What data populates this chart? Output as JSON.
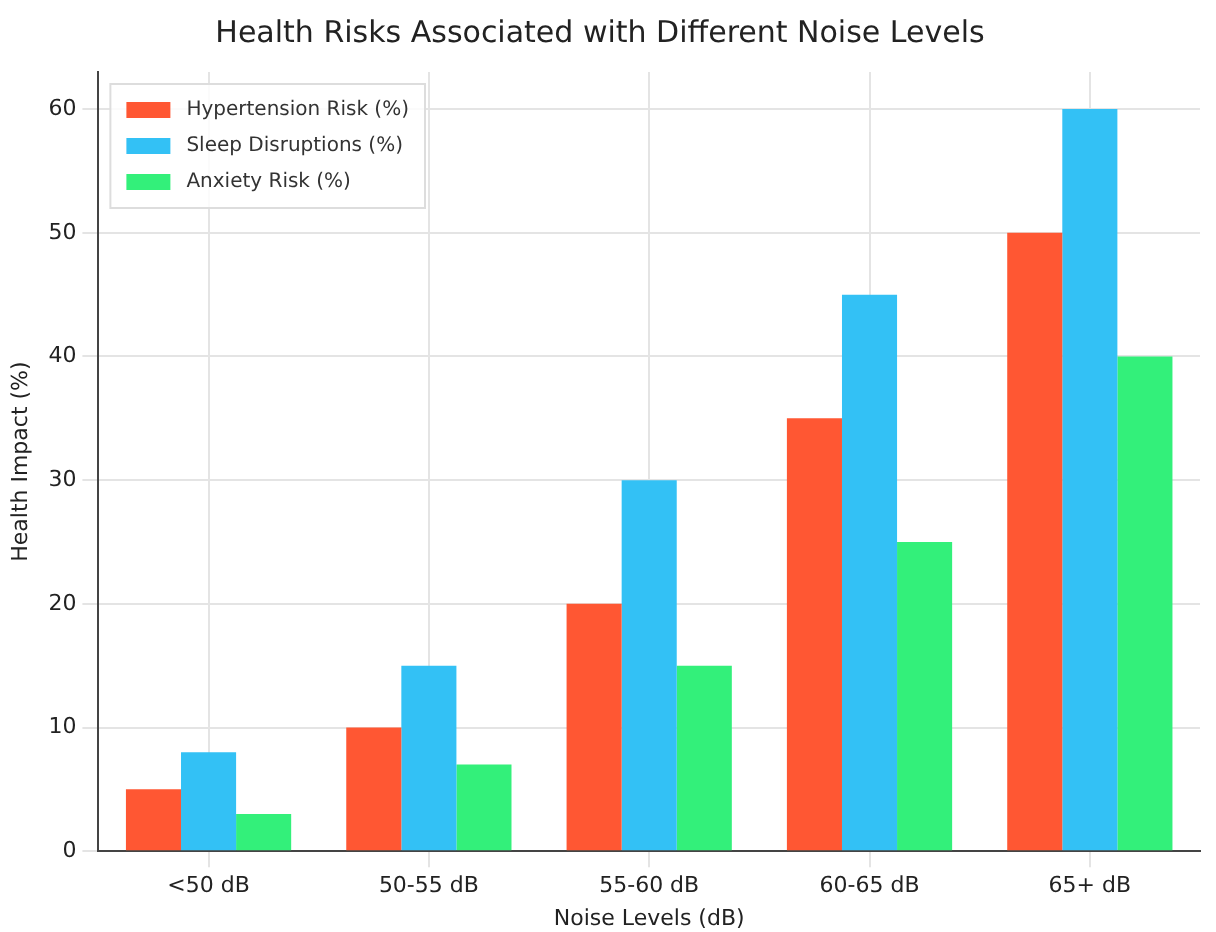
{
  "chart_data": {
    "type": "bar",
    "title": "Health Risks Associated with Different Noise Levels",
    "xlabel": "Noise Levels (dB)",
    "ylabel": "Health Impact (%)",
    "categories": [
      "<50 dB",
      "50-55 dB",
      "55-60 dB",
      "60-65 dB",
      "65+ dB"
    ],
    "series": [
      {
        "name": "Hypertension Risk (%)",
        "color": "#ff5733",
        "values": [
          5,
          10,
          20,
          35,
          50
        ]
      },
      {
        "name": "Sleep Disruptions (%)",
        "color": "#33c1f5",
        "values": [
          8,
          15,
          30,
          45,
          60
        ]
      },
      {
        "name": "Anxiety Risk (%)",
        "color": "#33f07a",
        "values": [
          3,
          7,
          15,
          25,
          40
        ]
      }
    ],
    "ylim": [
      0,
      63
    ],
    "yticks": [
      0,
      10,
      20,
      30,
      40,
      50,
      60
    ],
    "grid": true,
    "legend": "top left"
  }
}
